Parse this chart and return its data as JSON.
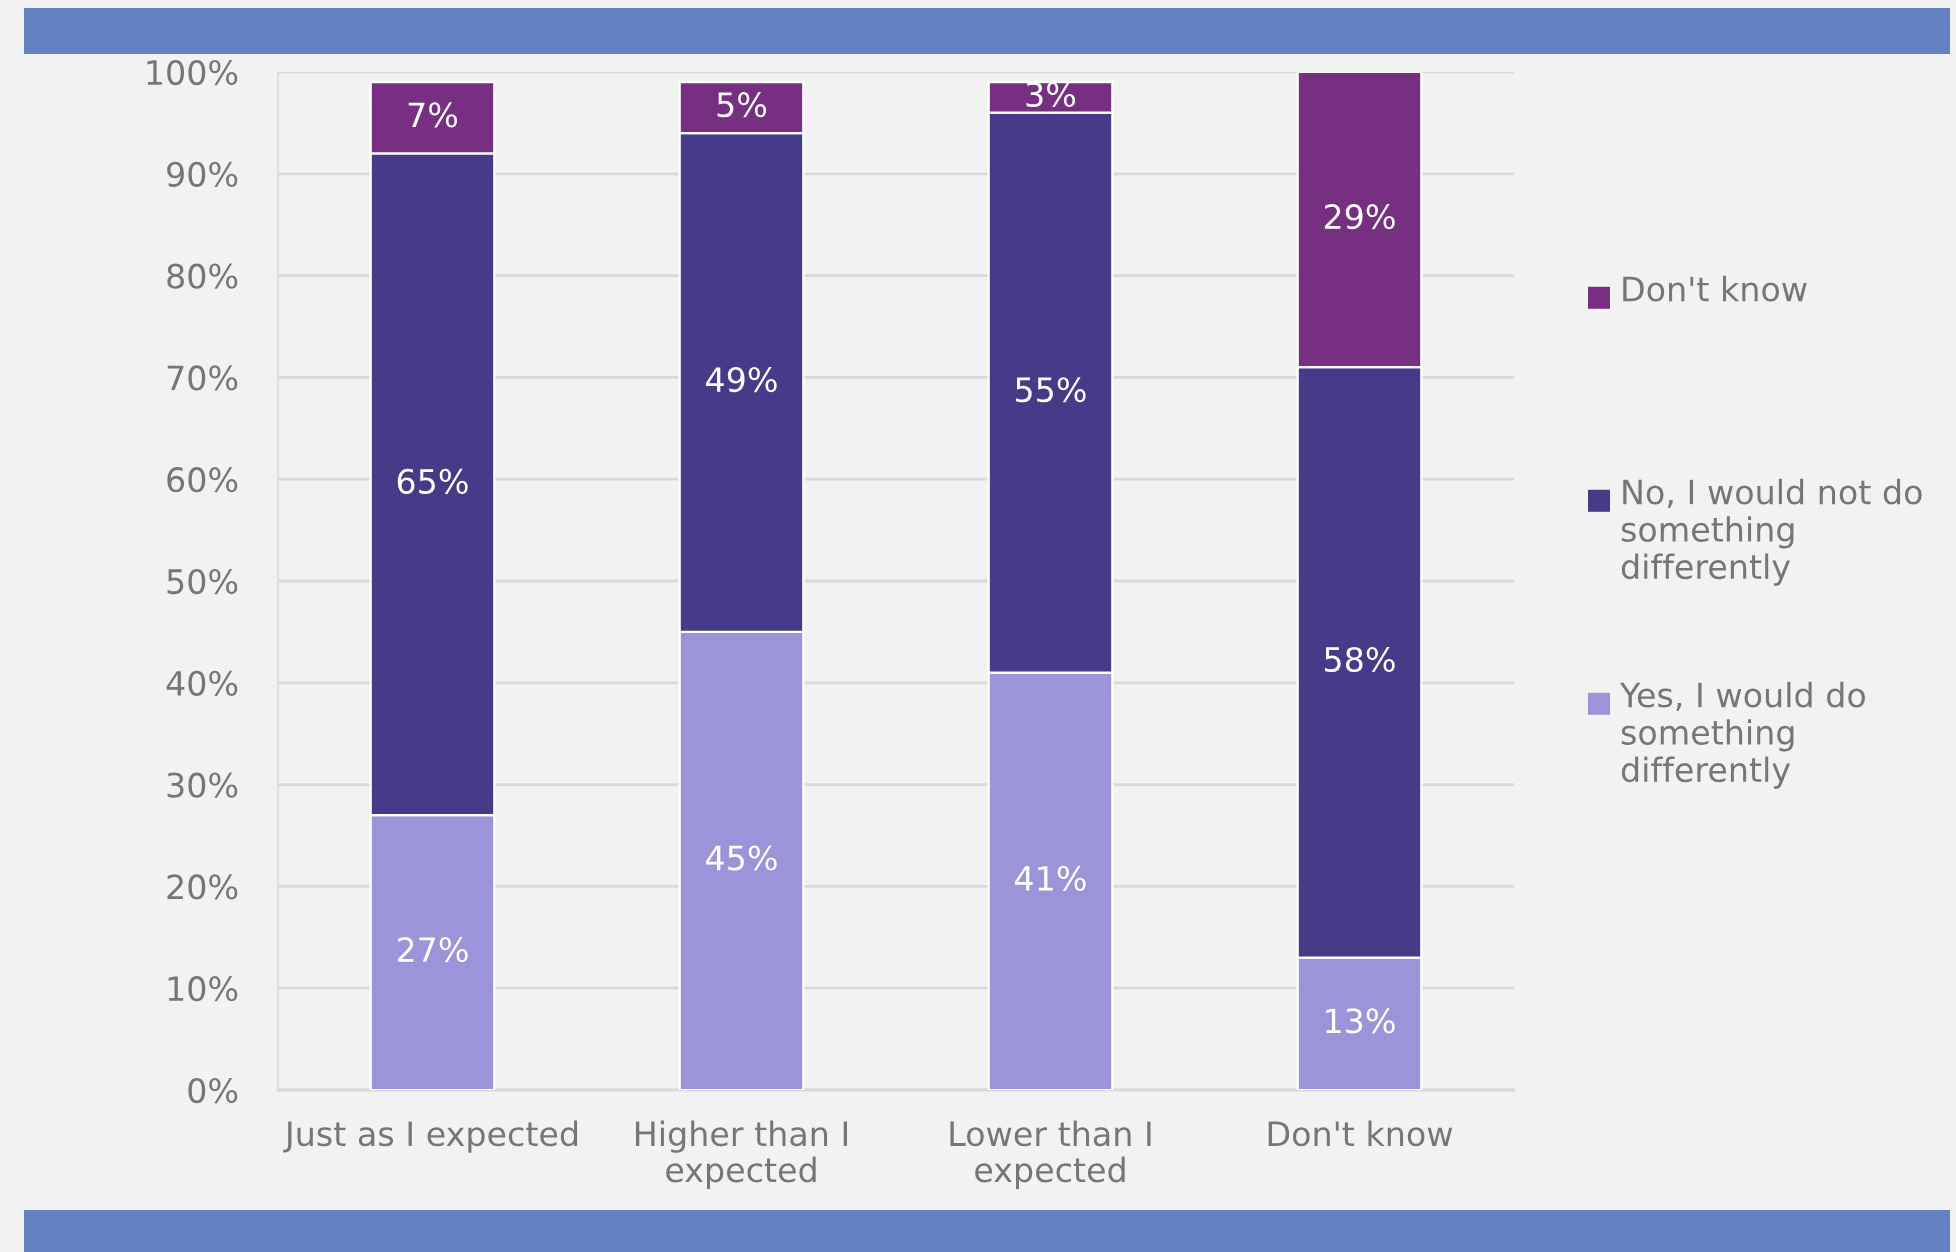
{
  "chart_data": {
    "type": "bar",
    "stacked": true,
    "categories": [
      "Just as I expected",
      "Higher than I expected",
      "Lower than I expected",
      "Don't know"
    ],
    "series": [
      {
        "name": "Yes, I would do something differently",
        "color": "#9c94d8",
        "values": [
          27,
          45,
          41,
          13
        ],
        "value_labels": [
          "27%",
          "45%",
          "41%",
          "13%"
        ]
      },
      {
        "name": "No, I would not do something differently",
        "color": "#453b89",
        "values": [
          65,
          49,
          55,
          58
        ],
        "value_labels": [
          "65%",
          "49%",
          "55%",
          "58%"
        ]
      },
      {
        "name": "Don't know",
        "color": "#772f82",
        "values": [
          7,
          5,
          3,
          29
        ],
        "value_labels": [
          "7%",
          "5%",
          "3%",
          "29%"
        ]
      }
    ],
    "ylim": [
      0,
      100
    ],
    "yticks": [
      {
        "value": 0,
        "label": "0%"
      },
      {
        "value": 10,
        "label": "10%"
      },
      {
        "value": 20,
        "label": "20%"
      },
      {
        "value": 30,
        "label": "30%"
      },
      {
        "value": 40,
        "label": "40%"
      },
      {
        "value": 50,
        "label": "50%"
      },
      {
        "value": 60,
        "label": "60%"
      },
      {
        "value": 70,
        "label": "70%"
      },
      {
        "value": 80,
        "label": "80%"
      },
      {
        "value": 90,
        "label": "90%"
      },
      {
        "value": 100,
        "label": "100%"
      }
    ],
    "grid": "y",
    "legend": "right"
  }
}
